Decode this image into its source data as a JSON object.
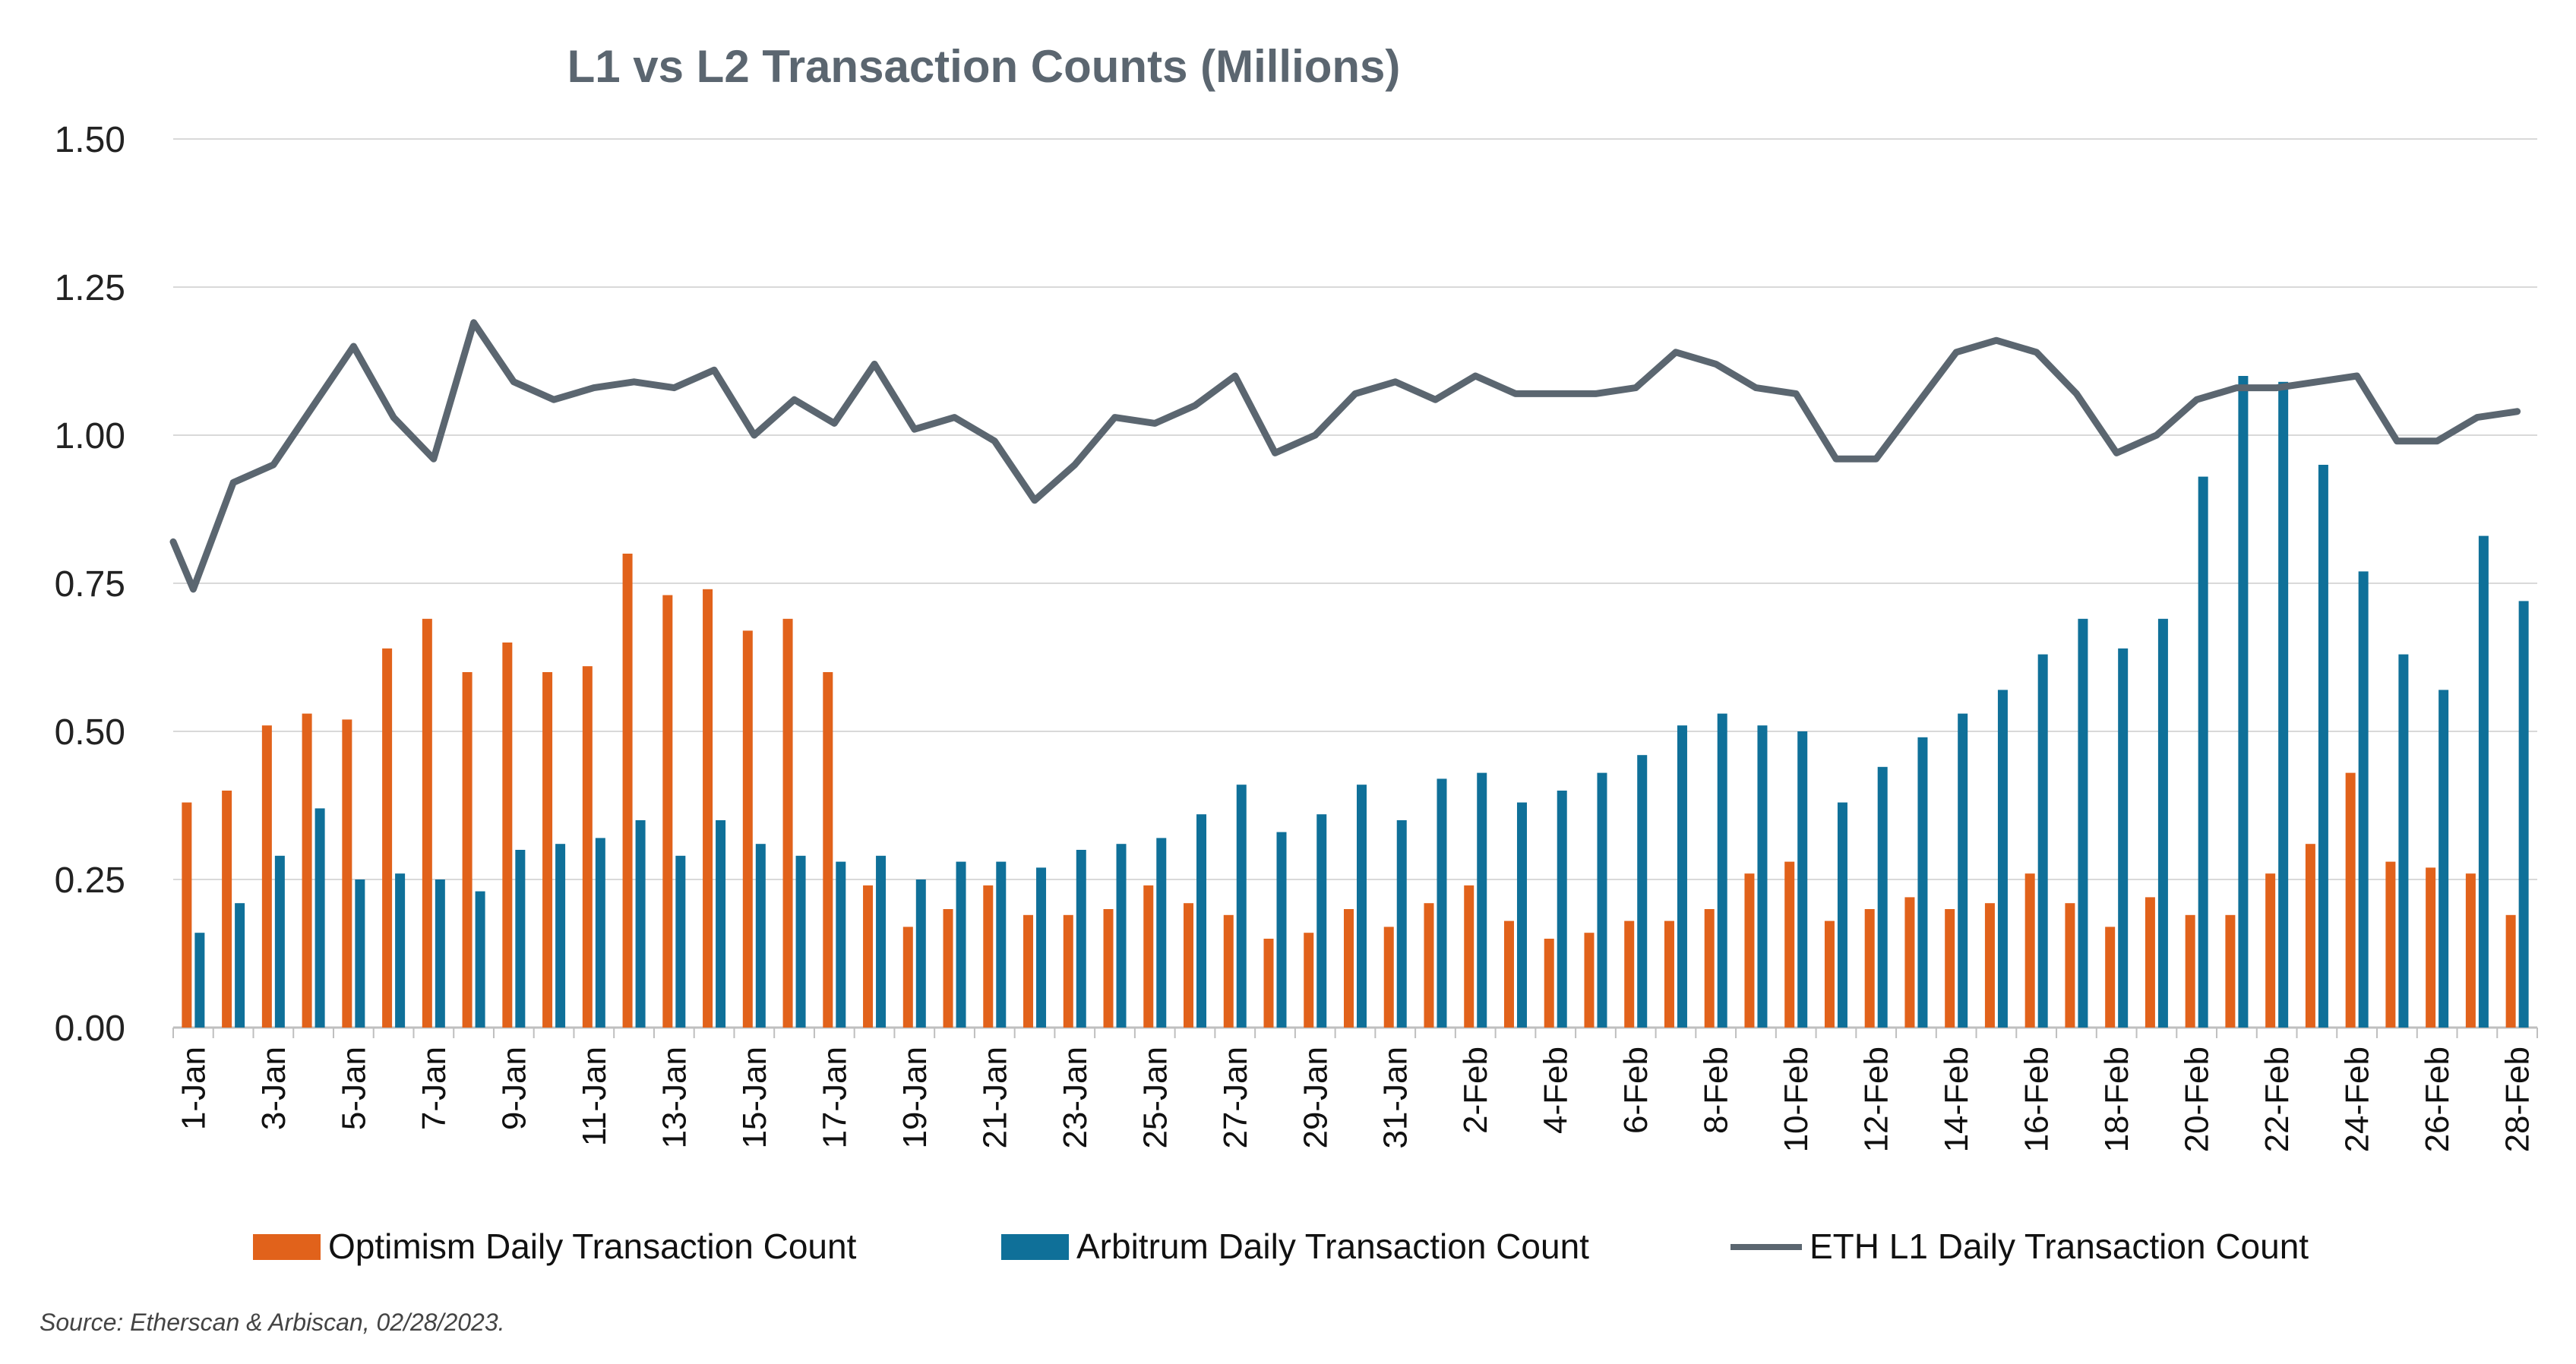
{
  "chart_data": {
    "type": "bar",
    "title": "L1 vs L2 Transaction Counts (Millions)",
    "source": "Source: Etherscan & Arbiscan, 02/28/2023.",
    "ylim": [
      0,
      1.5
    ],
    "yticks": [
      "0.00",
      "0.25",
      "0.50",
      "0.75",
      "1.00",
      "1.25",
      "1.50"
    ],
    "grid": true,
    "legend_position": "bottom",
    "categories": [
      "1-Jan",
      "2-Jan",
      "3-Jan",
      "4-Jan",
      "5-Jan",
      "6-Jan",
      "7-Jan",
      "8-Jan",
      "9-Jan",
      "10-Jan",
      "11-Jan",
      "12-Jan",
      "13-Jan",
      "14-Jan",
      "15-Jan",
      "16-Jan",
      "17-Jan",
      "18-Jan",
      "19-Jan",
      "20-Jan",
      "21-Jan",
      "22-Jan",
      "23-Jan",
      "24-Jan",
      "25-Jan",
      "26-Jan",
      "27-Jan",
      "28-Jan",
      "29-Jan",
      "30-Jan",
      "31-Jan",
      "1-Feb",
      "2-Feb",
      "3-Feb",
      "4-Feb",
      "5-Feb",
      "6-Feb",
      "7-Feb",
      "8-Feb",
      "9-Feb",
      "10-Feb",
      "11-Feb",
      "12-Feb",
      "13-Feb",
      "14-Feb",
      "15-Feb",
      "16-Feb",
      "17-Feb",
      "18-Feb",
      "19-Feb",
      "20-Feb",
      "21-Feb",
      "22-Feb",
      "23-Feb",
      "24-Feb",
      "25-Feb",
      "26-Feb",
      "27-Feb",
      "28-Feb"
    ],
    "series": [
      {
        "name": "Optimism Daily Transaction Count",
        "type": "bar",
        "color": "#e1621b",
        "values": [
          0.38,
          0.4,
          0.51,
          0.53,
          0.52,
          0.64,
          0.69,
          0.6,
          0.65,
          0.6,
          0.61,
          0.8,
          0.73,
          0.74,
          0.67,
          0.69,
          0.6,
          0.24,
          0.17,
          0.2,
          0.24,
          0.19,
          0.19,
          0.2,
          0.24,
          0.21,
          0.19,
          0.15,
          0.16,
          0.2,
          0.17,
          0.21,
          0.24,
          0.18,
          0.15,
          0.16,
          0.18,
          0.18,
          0.2,
          0.26,
          0.28,
          0.18,
          0.2,
          0.22,
          0.2,
          0.21,
          0.26,
          0.21,
          0.17,
          0.22,
          0.19,
          0.19,
          0.26,
          0.31,
          0.43,
          0.28,
          0.27,
          0.26,
          0.19
        ]
      },
      {
        "name": "Arbitrum Daily Transaction Count",
        "type": "bar",
        "color": "#0f7099",
        "values": [
          0.16,
          0.21,
          0.29,
          0.37,
          0.25,
          0.26,
          0.25,
          0.23,
          0.3,
          0.31,
          0.32,
          0.35,
          0.29,
          0.35,
          0.31,
          0.29,
          0.28,
          0.29,
          0.25,
          0.28,
          0.28,
          0.27,
          0.3,
          0.31,
          0.32,
          0.36,
          0.41,
          0.33,
          0.36,
          0.41,
          0.35,
          0.42,
          0.43,
          0.38,
          0.4,
          0.43,
          0.46,
          0.51,
          0.53,
          0.51,
          0.5,
          0.38,
          0.44,
          0.49,
          0.53,
          0.57,
          0.63,
          0.69,
          0.64,
          0.69,
          0.93,
          1.1,
          1.09,
          0.95,
          0.77,
          0.63,
          0.57,
          0.83,
          0.72
        ]
      },
      {
        "name": "ETH L1 Daily Transaction Count",
        "type": "line",
        "color": "#5b6670",
        "values": [
          0.74,
          0.92,
          0.95,
          1.05,
          1.15,
          1.03,
          0.96,
          1.19,
          1.09,
          1.06,
          1.08,
          1.09,
          1.08,
          1.11,
          1.0,
          1.06,
          1.02,
          1.12,
          1.01,
          1.03,
          0.99,
          0.89,
          0.95,
          1.03,
          1.02,
          1.05,
          1.1,
          0.97,
          1.0,
          1.07,
          1.09,
          1.06,
          1.1,
          1.07,
          1.07,
          1.07,
          1.08,
          1.14,
          1.12,
          1.08,
          1.07,
          0.96,
          0.96,
          1.05,
          1.14,
          1.16,
          1.14,
          1.07,
          0.97,
          1.0,
          1.06,
          1.08,
          1.08,
          1.09,
          1.1,
          0.99,
          0.99,
          1.03,
          1.04
        ]
      }
    ]
  }
}
